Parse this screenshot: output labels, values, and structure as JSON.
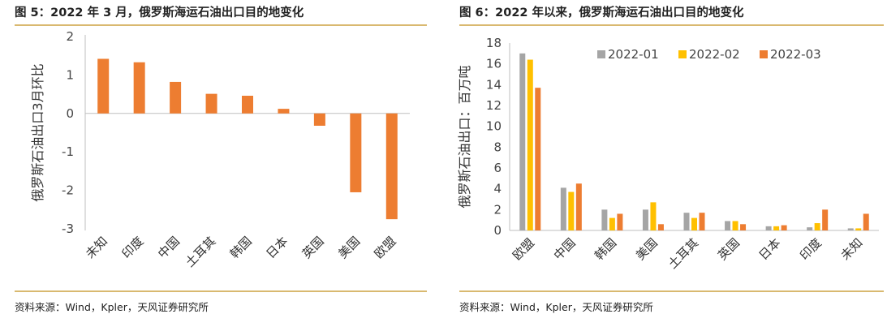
{
  "colors": {
    "orange": "#ed7d31",
    "gray": "#a5a5a5",
    "gold": "#ffc000",
    "rule": "#d9b970",
    "axis": "#bfbfbf"
  },
  "chart_data": [
    {
      "type": "bar",
      "title": "图 5：2022 年 3 月，俄罗斯海运石油出口目的地变化",
      "source": "资料来源：Wind，Kpler，天风证券研究所",
      "ylabel": "俄罗斯石油出口3月环比",
      "xlabel": "",
      "ylim": [
        -3,
        2
      ],
      "yticks": [
        "2",
        "1",
        "0",
        "-1",
        "-2",
        "-3"
      ],
      "categories": [
        "未知",
        "印度",
        "中国",
        "土耳其",
        "韩国",
        "日本",
        "英国",
        "美国",
        "欧盟"
      ],
      "values": [
        1.42,
        1.33,
        0.82,
        0.51,
        0.46,
        0.12,
        -0.32,
        -2.05,
        -2.75
      ],
      "grid": false
    },
    {
      "type": "bar",
      "title": "图 6：2022 年以来，俄罗斯海运石油出口目的地变化",
      "source": "资料来源：Wind，Kpler，天风证券研究所",
      "ylabel": "俄罗斯石油出口：百万吨",
      "xlabel": "",
      "ylim": [
        0,
        18
      ],
      "yticks": [
        "18",
        "16",
        "14",
        "12",
        "10",
        "8",
        "6",
        "4",
        "2",
        "0"
      ],
      "categories": [
        "欧盟",
        "中国",
        "韩国",
        "美国",
        "土耳其",
        "英国",
        "日本",
        "印度",
        "未知"
      ],
      "legend_position": "top-right",
      "series": [
        {
          "name": "2022-01",
          "values": [
            17.0,
            4.1,
            2.0,
            2.0,
            1.7,
            0.9,
            0.4,
            0.3,
            0.2
          ]
        },
        {
          "name": "2022-02",
          "values": [
            16.4,
            3.7,
            1.2,
            2.7,
            1.2,
            0.9,
            0.4,
            0.7,
            0.2
          ]
        },
        {
          "name": "2022-03",
          "values": [
            13.7,
            4.5,
            1.6,
            0.6,
            1.7,
            0.6,
            0.5,
            2.0,
            1.6
          ]
        }
      ],
      "grid": false
    }
  ]
}
